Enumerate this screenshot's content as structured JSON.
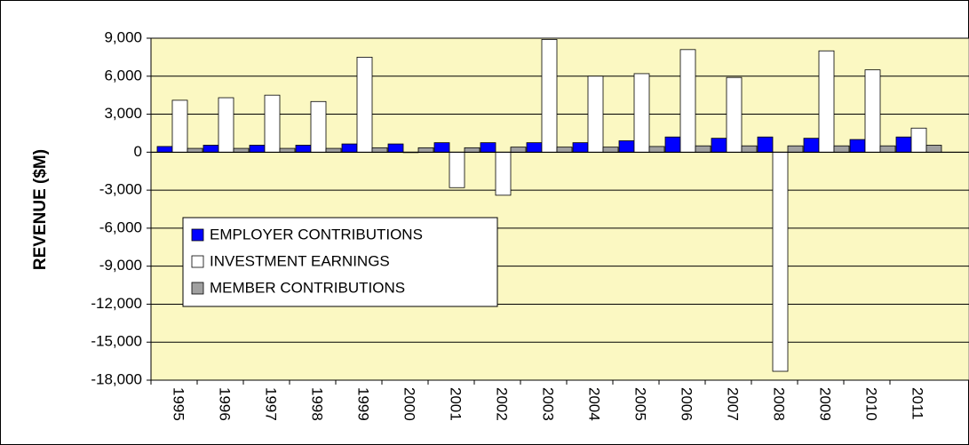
{
  "chart_data": {
    "type": "bar",
    "y_label": "REVENUE ($M)",
    "categories": [
      "1995",
      "1996",
      "1997",
      "1998",
      "1999",
      "2000",
      "2001",
      "2002",
      "2003",
      "2004",
      "2005",
      "2006",
      "2007",
      "2008",
      "2009",
      "2010",
      "2011"
    ],
    "series": [
      {
        "name": "EMPLOYER CONTRIBUTIONS",
        "color": "#0000ff",
        "values": [
          450,
          550,
          550,
          550,
          650,
          650,
          750,
          750,
          750,
          750,
          900,
          1200,
          1100,
          1200,
          1100,
          1000,
          1200
        ]
      },
      {
        "name": "INVESTMENT EARNINGS",
        "color": "#ffffff",
        "values": [
          4100,
          4300,
          4500,
          4000,
          7500,
          0,
          -2800,
          -3400,
          8900,
          6000,
          6200,
          8100,
          5900,
          -17300,
          8000,
          6500,
          1900
        ]
      },
      {
        "name": "MEMBER CONTRIBUTIONS",
        "color": "#a0a0a0",
        "values": [
          300,
          300,
          300,
          300,
          350,
          350,
          350,
          400,
          400,
          400,
          450,
          500,
          500,
          500,
          500,
          500,
          550
        ]
      }
    ],
    "ylim": [
      -18000,
      9000
    ],
    "yticks": [
      {
        "value": -18000,
        "label": "-18,000"
      },
      {
        "value": -15000,
        "label": "-15,000"
      },
      {
        "value": -12000,
        "label": "-12,000"
      },
      {
        "value": -9000,
        "label": "-9,000"
      },
      {
        "value": -6000,
        "label": "-6,000"
      },
      {
        "value": -3000,
        "label": "-3,000"
      },
      0,
      {
        "value": 3000,
        "label": "3,000"
      },
      {
        "value": 6000,
        "label": "6,000"
      },
      {
        "value": 9000,
        "label": "9,000"
      }
    ],
    "grid": true
  }
}
